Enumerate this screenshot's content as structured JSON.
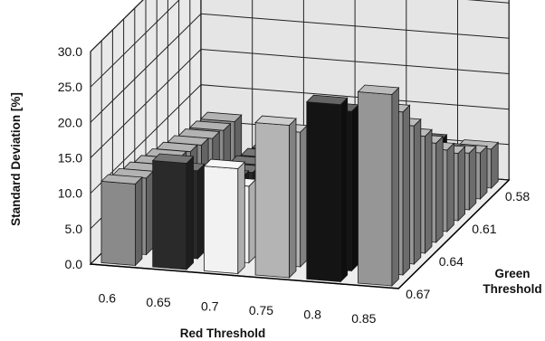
{
  "chart_data": {
    "type": "bar3d",
    "ylabel": "Standard Deviation [%]",
    "xlabel": "Red Threshold",
    "zlabel": "Green Threshold",
    "zlabel_lines": [
      "Green",
      "Threshold"
    ],
    "ylim": [
      0,
      30
    ],
    "y_ticks": [
      "0.0",
      "5.0",
      "10.0",
      "15.0",
      "20.0",
      "25.0",
      "30.0"
    ],
    "red_thresholds": [
      "0.6",
      "0.65",
      "0.7",
      "0.75",
      "0.8",
      "0.85"
    ],
    "green_thresholds": [
      "0.58",
      "0.61",
      "0.64",
      "0.67"
    ],
    "green_rows_shown": 10,
    "grid": true,
    "bar_colors": {
      "0.6": "#8a8a8a",
      "0.65": "#2a2a2a",
      "0.7": "#f2f2f2",
      "0.75": "#b4b4b4",
      "0.8": "#141414",
      "0.85": "#969696"
    },
    "values": [
      [
        11.5,
        10.8,
        10.2,
        9.6,
        9.0,
        8.4,
        7.8,
        7.2,
        6.8,
        6.5
      ],
      [
        15.0,
        12.4,
        10.2,
        8.2,
        6.6,
        5.3,
        4.5,
        4.0,
        3.5,
        3.0
      ],
      [
        14.8,
        10.8,
        7.5,
        5.0,
        3.5,
        2.6,
        2.0,
        1.8,
        1.6,
        1.5
      ],
      [
        21.5,
        19.0,
        16.5,
        14.0,
        11.5,
        9.5,
        8.0,
        7.0,
        5.8,
        5.0
      ],
      [
        25.0,
        22.5,
        20.0,
        17.5,
        15.0,
        12.5,
        10.5,
        8.5,
        7.0,
        6.0
      ],
      [
        27.0,
        23.0,
        19.5,
        16.5,
        14.0,
        11.5,
        9.5,
        8.0,
        6.5,
        5.5
      ]
    ]
  }
}
